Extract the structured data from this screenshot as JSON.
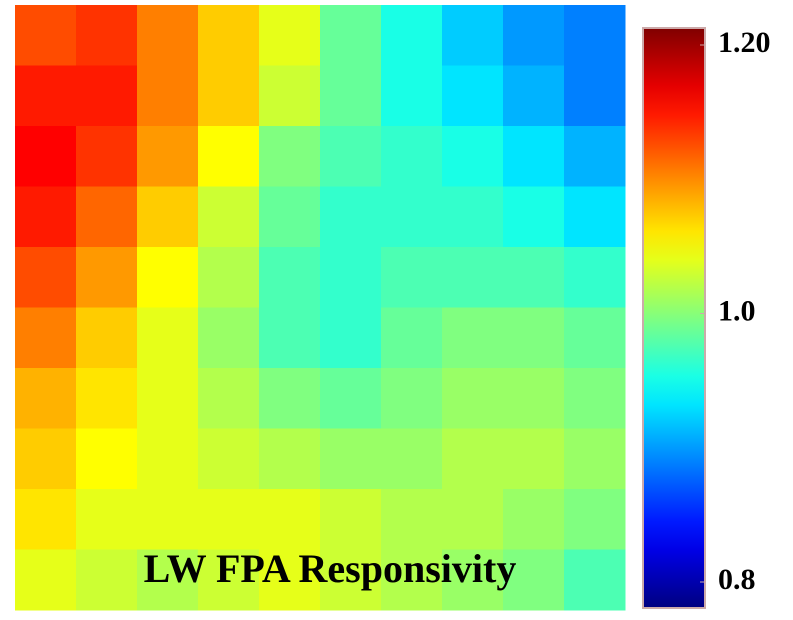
{
  "chart_data": {
    "type": "heatmap",
    "title": "LW FPA Responsivity",
    "colormap": "jet",
    "values": [
      [
        1.12,
        1.13,
        1.1,
        1.07,
        1.04,
        0.99,
        0.96,
        0.93,
        0.91,
        0.9
      ],
      [
        1.14,
        1.14,
        1.1,
        1.07,
        1.03,
        0.99,
        0.96,
        0.94,
        0.92,
        0.9
      ],
      [
        1.15,
        1.13,
        1.09,
        1.05,
        1.0,
        0.98,
        0.97,
        0.96,
        0.94,
        0.92
      ],
      [
        1.14,
        1.11,
        1.07,
        1.03,
        0.99,
        0.97,
        0.97,
        0.97,
        0.96,
        0.94
      ],
      [
        1.12,
        1.09,
        1.05,
        1.02,
        0.98,
        0.97,
        0.98,
        0.98,
        0.98,
        0.97
      ],
      [
        1.1,
        1.07,
        1.04,
        1.01,
        0.98,
        0.97,
        0.99,
        1.0,
        1.0,
        0.99
      ],
      [
        1.08,
        1.06,
        1.04,
        1.02,
        1.0,
        0.99,
        1.0,
        1.01,
        1.01,
        1.0
      ],
      [
        1.07,
        1.05,
        1.04,
        1.03,
        1.02,
        1.01,
        1.01,
        1.02,
        1.02,
        1.01
      ],
      [
        1.06,
        1.04,
        1.04,
        1.04,
        1.04,
        1.03,
        1.02,
        1.02,
        1.01,
        1.0
      ],
      [
        1.04,
        1.03,
        1.02,
        1.03,
        1.04,
        1.03,
        1.02,
        1.01,
        1.0,
        0.98
      ]
    ],
    "clim": [
      0.8,
      1.2
    ],
    "cticks": [
      0.8,
      {
        "value": 1,
        "label": "1.0"
      },
      {
        "value": 1.2,
        "label": "1.20"
      }
    ]
  }
}
